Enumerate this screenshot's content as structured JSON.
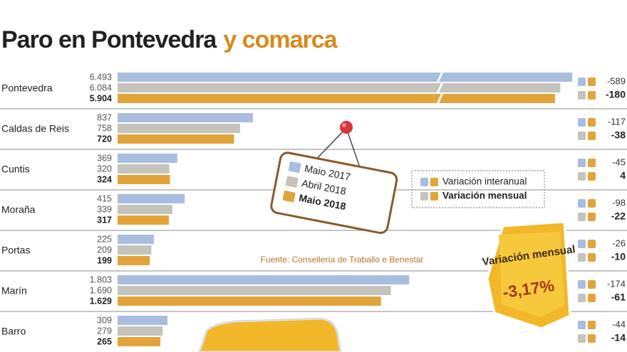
{
  "chart_data": {
    "type": "bar",
    "title": "Paro en Pontevedra",
    "title_highlight": "y comarca",
    "categories": [
      "Pontevedra",
      "Caldas de Reis",
      "Cuntis",
      "Moraña",
      "Portas",
      "Marín",
      "Barro"
    ],
    "series": [
      {
        "name": "Maio 2017",
        "color": "#a9bedf",
        "values": [
          6493,
          837,
          369,
          415,
          225,
          1803,
          309
        ],
        "value_labels": [
          "6.493",
          "837",
          "369",
          "415",
          "225",
          "1.803",
          "309"
        ]
      },
      {
        "name": "Abril 2018",
        "color": "#c4c3bc",
        "values": [
          6084,
          758,
          320,
          339,
          209,
          1690,
          279
        ],
        "value_labels": [
          "6.084",
          "758",
          "320",
          "339",
          "209",
          "1.690",
          "279"
        ]
      },
      {
        "name": "Maio 2018",
        "color": "#e2a43a",
        "values": [
          5904,
          720,
          324,
          317,
          199,
          1629,
          265
        ],
        "value_labels": [
          "5.904",
          "720",
          "324",
          "317",
          "199",
          "1.629",
          "265"
        ]
      }
    ],
    "variations": [
      {
        "name": "Variación interanual",
        "values": [
          -589,
          -117,
          -45,
          -98,
          -26,
          -174,
          -44
        ]
      },
      {
        "name": "Variación mensual",
        "values": [
          -180,
          -38,
          4,
          -22,
          -10,
          -61,
          -14
        ]
      }
    ],
    "source": "Fuente: Consellería de Traballo e Benestar",
    "badge": {
      "label": "Variación mensual",
      "value": -3.17,
      "value_label": "-3,17%"
    }
  }
}
